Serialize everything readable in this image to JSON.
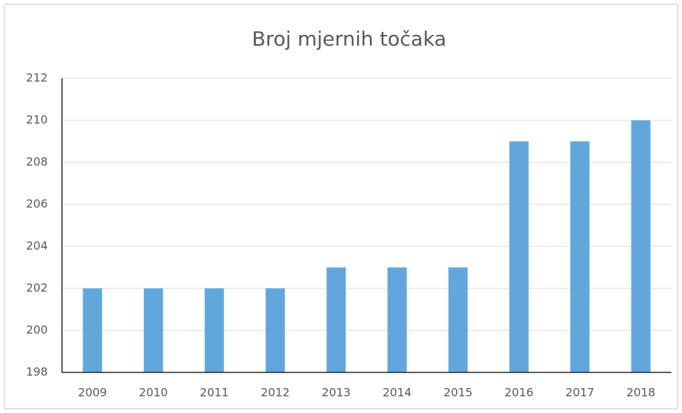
{
  "chart_data": {
    "type": "bar",
    "title": "Broj mjernih točaka",
    "categories": [
      "2009",
      "2010",
      "2011",
      "2012",
      "2013",
      "2014",
      "2015",
      "2016",
      "2017",
      "2018"
    ],
    "values": [
      202,
      202,
      202,
      202,
      203,
      203,
      203,
      209,
      209,
      210
    ],
    "color": "#62a7dc",
    "ylim": [
      198,
      212
    ],
    "yticks": [
      198,
      200,
      202,
      204,
      206,
      208,
      210,
      212
    ],
    "grid": true
  }
}
